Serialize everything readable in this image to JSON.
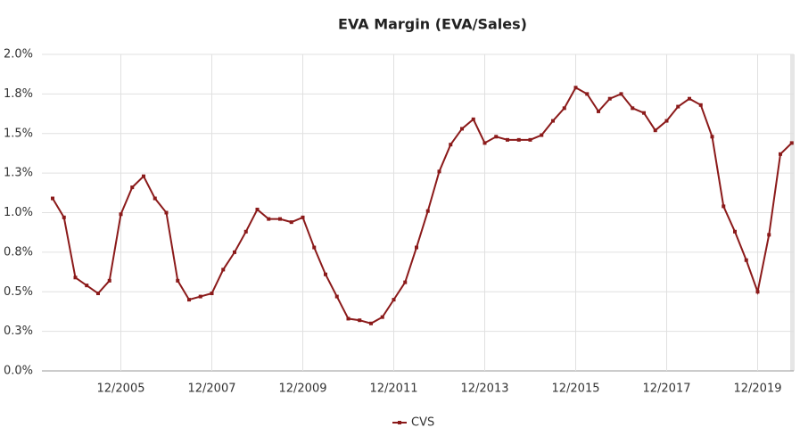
{
  "chart_data": {
    "type": "line",
    "title": "EVA Margin (EVA/Sales)",
    "categories": [
      null,
      null,
      null,
      null,
      null,
      null,
      "12/2005",
      null,
      null,
      null,
      null,
      null,
      null,
      null,
      "12/2007",
      null,
      null,
      null,
      null,
      null,
      null,
      null,
      "12/2009",
      null,
      null,
      null,
      null,
      null,
      null,
      null,
      "12/2011",
      null,
      null,
      null,
      null,
      null,
      null,
      null,
      "12/2013",
      null,
      null,
      null,
      null,
      null,
      null,
      null,
      "12/2015",
      null,
      null,
      null,
      null,
      null,
      null,
      null,
      "12/2017",
      null,
      null,
      null,
      null,
      null,
      null,
      null,
      "12/2019",
      null,
      null,
      null
    ],
    "series": [
      {
        "name": "CVS",
        "color": "#8b1a1a",
        "values": [
          1.09,
          0.97,
          0.59,
          0.54,
          0.49,
          0.57,
          0.99,
          1.16,
          1.23,
          1.09,
          1.0,
          0.57,
          0.45,
          0.47,
          0.49,
          0.64,
          0.75,
          0.88,
          1.02,
          0.96,
          0.96,
          0.94,
          0.97,
          0.78,
          0.61,
          0.47,
          0.33,
          0.32,
          0.3,
          0.34,
          0.45,
          0.56,
          0.78,
          1.01,
          1.26,
          1.43,
          1.53,
          1.59,
          1.44,
          1.48,
          1.46,
          1.46,
          1.46,
          1.49,
          1.58,
          1.66,
          1.79,
          1.75,
          1.64,
          1.72,
          1.75,
          1.66,
          1.63,
          1.52,
          1.58,
          1.67,
          1.72,
          1.68,
          1.48,
          1.04,
          0.88,
          0.7,
          0.5,
          0.86,
          1.37,
          1.44
        ]
      }
    ],
    "ylim": [
      0,
      2
    ],
    "yticks": [
      {
        "value": 0,
        "label": "0.0%"
      },
      {
        "value": 0.25,
        "label": "0.3%"
      },
      {
        "value": 0.5,
        "label": "0.5%"
      },
      {
        "value": 0.75,
        "label": "0.8%"
      },
      {
        "value": 1,
        "label": "1.0%"
      },
      {
        "value": 1.25,
        "label": "1.3%"
      },
      {
        "value": 1.5,
        "label": "1.5%"
      },
      {
        "value": 1.75,
        "label": "1.8%"
      },
      {
        "value": 2,
        "label": "2.0%"
      }
    ],
    "grid": true,
    "legend": "bottom"
  }
}
